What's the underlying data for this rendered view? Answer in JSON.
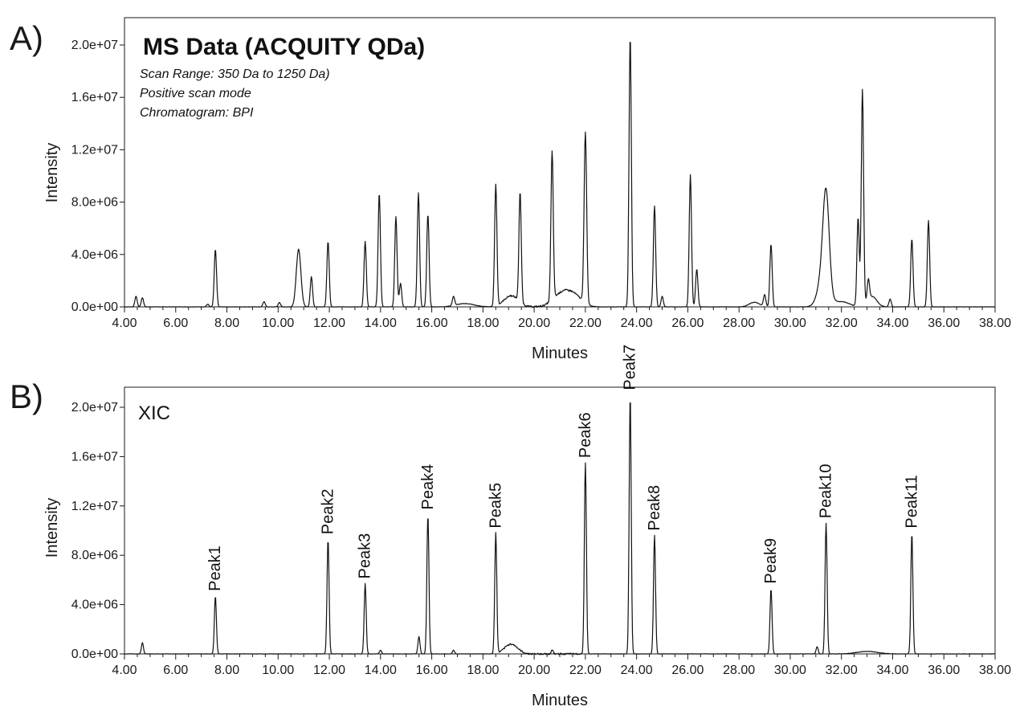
{
  "chart_data": [
    {
      "type": "line",
      "panel_letter": "A)",
      "title": "MS Data (ACQUITY QDa)",
      "annotations": [
        "Scan Range: 350 Da to 1250 Da)",
        "Positive scan mode",
        "Chromatogram: BPI"
      ],
      "xlabel": "Minutes",
      "ylabel": "Intensity",
      "xlim": [
        4.0,
        38.0
      ],
      "ylim": [
        -1000000.0,
        22000000.0
      ],
      "x_ticks": [
        "4.00",
        "6.00",
        "8.00",
        "10.00",
        "12.00",
        "14.00",
        "16.00",
        "18.00",
        "20.00",
        "22.00",
        "24.00",
        "26.00",
        "28.00",
        "30.00",
        "32.00",
        "34.00",
        "36.00",
        "38.00"
      ],
      "y_ticks": [
        "0.0e+00",
        "4.0e+06",
        "8.0e+06",
        "1.2e+07",
        "1.6e+07",
        "2.0e+07"
      ],
      "y_tick_values": [
        0,
        4000000,
        8000000,
        12000000,
        16000000,
        20000000
      ],
      "x_tick_values": [
        4,
        6,
        8,
        10,
        12,
        14,
        16,
        18,
        20,
        22,
        24,
        26,
        28,
        30,
        32,
        34,
        36,
        38
      ],
      "grid": false,
      "peaks": [
        {
          "x": 4.45,
          "y": 800000
        },
        {
          "x": 4.7,
          "y": 700000
        },
        {
          "x": 7.25,
          "y": 200000
        },
        {
          "x": 7.55,
          "y": 4400000
        },
        {
          "x": 9.45,
          "y": 400000
        },
        {
          "x": 10.05,
          "y": 350000
        },
        {
          "x": 10.8,
          "y": 4400000
        },
        {
          "x": 11.3,
          "y": 2300000
        },
        {
          "x": 11.95,
          "y": 5000000
        },
        {
          "x": 13.4,
          "y": 5000000
        },
        {
          "x": 13.95,
          "y": 8700000
        },
        {
          "x": 14.6,
          "y": 6900000
        },
        {
          "x": 14.78,
          "y": 1800000
        },
        {
          "x": 15.48,
          "y": 8700000
        },
        {
          "x": 15.85,
          "y": 7100000
        },
        {
          "x": 16.85,
          "y": 700000
        },
        {
          "x": 18.5,
          "y": 9300000
        },
        {
          "x": 19.45,
          "y": 8400000
        },
        {
          "x": 20.7,
          "y": 11400000
        },
        {
          "x": 22.0,
          "y": 13000000
        },
        {
          "x": 23.75,
          "y": 20700000
        },
        {
          "x": 24.7,
          "y": 7700000
        },
        {
          "x": 25.0,
          "y": 800000
        },
        {
          "x": 26.1,
          "y": 10100000
        },
        {
          "x": 26.35,
          "y": 2900000
        },
        {
          "x": 29.0,
          "y": 900000
        },
        {
          "x": 29.25,
          "y": 4800000
        },
        {
          "x": 31.4,
          "y": 6800000
        },
        {
          "x": 32.65,
          "y": 6800000
        },
        {
          "x": 32.82,
          "y": 16500000
        },
        {
          "x": 33.05,
          "y": 1600000
        },
        {
          "x": 33.9,
          "y": 600000
        },
        {
          "x": 34.75,
          "y": 5200000
        },
        {
          "x": 35.4,
          "y": 6600000
        }
      ]
    },
    {
      "type": "line",
      "panel_letter": "B)",
      "title": "XIC",
      "xlabel": "Minutes",
      "ylabel": "Intensity",
      "xlim": [
        4.0,
        38.0
      ],
      "ylim": [
        -1000000.0,
        22000000.0
      ],
      "x_ticks": [
        "4.00",
        "6.00",
        "8.00",
        "10.00",
        "12.00",
        "14.00",
        "16.00",
        "18.00",
        "20.00",
        "22.00",
        "24.00",
        "26.00",
        "28.00",
        "30.00",
        "32.00",
        "34.00",
        "36.00",
        "38.00"
      ],
      "y_ticks": [
        "0.0e+00",
        "4.0e+06",
        "8.0e+06",
        "1.2e+07",
        "1.6e+07",
        "2.0e+07"
      ],
      "y_tick_values": [
        0,
        4000000,
        8000000,
        12000000,
        16000000,
        20000000
      ],
      "x_tick_values": [
        4,
        6,
        8,
        10,
        12,
        14,
        16,
        18,
        20,
        22,
        24,
        26,
        28,
        30,
        32,
        34,
        36,
        38
      ],
      "grid": false,
      "peaks": [
        {
          "x": 4.7,
          "y": 900000,
          "label": ""
        },
        {
          "x": 7.55,
          "y": 4700000,
          "label": "Peak1"
        },
        {
          "x": 11.95,
          "y": 9300000,
          "label": "Peak2"
        },
        {
          "x": 13.4,
          "y": 5700000,
          "label": "Peak3"
        },
        {
          "x": 14.0,
          "y": 300000,
          "label": ""
        },
        {
          "x": 15.5,
          "y": 1400000,
          "label": ""
        },
        {
          "x": 15.85,
          "y": 11300000,
          "label": "Peak4"
        },
        {
          "x": 16.85,
          "y": 300000,
          "label": ""
        },
        {
          "x": 18.5,
          "y": 9800000,
          "label": "Peak5"
        },
        {
          "x": 20.7,
          "y": 300000,
          "label": ""
        },
        {
          "x": 22.0,
          "y": 15500000,
          "label": "Peak6"
        },
        {
          "x": 23.75,
          "y": 21000000,
          "label": "Peak7"
        },
        {
          "x": 24.7,
          "y": 9600000,
          "label": "Peak8"
        },
        {
          "x": 29.25,
          "y": 5300000,
          "label": "Peak9"
        },
        {
          "x": 31.05,
          "y": 600000,
          "label": ""
        },
        {
          "x": 31.4,
          "y": 10600000,
          "label": "Peak10"
        },
        {
          "x": 34.75,
          "y": 9800000,
          "label": "Peak11"
        }
      ]
    }
  ]
}
